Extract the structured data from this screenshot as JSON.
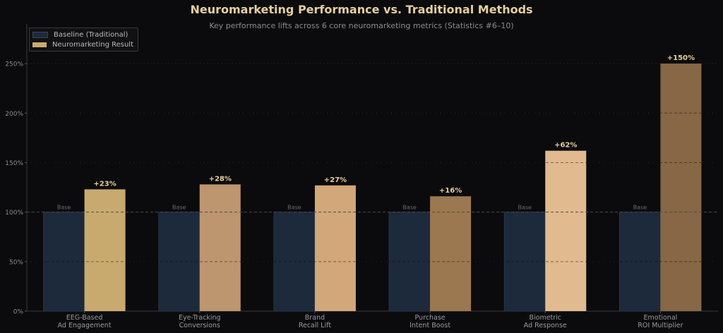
{
  "title": "Neuromarketing Performance vs. Traditional Methods",
  "subtitle": "Key performance lifts across 6 core neuromarketing metrics (Statistics #6–10)",
  "legend": {
    "baseline_label": "Baseline (Traditional)",
    "result_label": "Neuromarketing Result",
    "baseline_color": "#1d2a3b",
    "result_color": "#c8aa6e",
    "placement": "top-left"
  },
  "chart_data": {
    "type": "bar",
    "title": "Neuromarketing Performance vs. Traditional Methods",
    "subtitle": "Key performance lifts across 6 core neuromarketing metrics (Statistics #6–10)",
    "categories": [
      [
        "EEG-Based",
        "Ad Engagement"
      ],
      [
        "Eye-Tracking",
        "Conversions"
      ],
      [
        "Brand",
        "Recall Lift"
      ],
      [
        "Purchase",
        "Intent Boost"
      ],
      [
        "Biometric",
        "Ad Response"
      ],
      [
        "Emotional",
        "ROI Multiplier"
      ]
    ],
    "series": [
      {
        "name": "Baseline (Traditional)",
        "values": [
          100,
          100,
          100,
          100,
          100,
          100
        ],
        "color": "#1d2a3b"
      },
      {
        "name": "Neuromarketing Result",
        "values": [
          123,
          128,
          127,
          116,
          162,
          250
        ],
        "colors": [
          "#c8aa6e",
          "#bd966f",
          "#d2a77a",
          "#9c7850",
          "#e2ba8f",
          "#876745"
        ]
      }
    ],
    "baseline_labels": [
      "Base",
      "Base",
      "Base",
      "Base",
      "Base",
      "Base"
    ],
    "data_labels": [
      "+23%",
      "+28%",
      "+27%",
      "+16%",
      "+62%",
      "+150%"
    ],
    "yticks": [
      "0%",
      "50%",
      "100%",
      "150%",
      "200%",
      "250%"
    ],
    "ytick_values": [
      0,
      50,
      100,
      150,
      200,
      250
    ],
    "ylim": [
      0,
      290
    ],
    "reference_line": 100,
    "grid": true
  }
}
